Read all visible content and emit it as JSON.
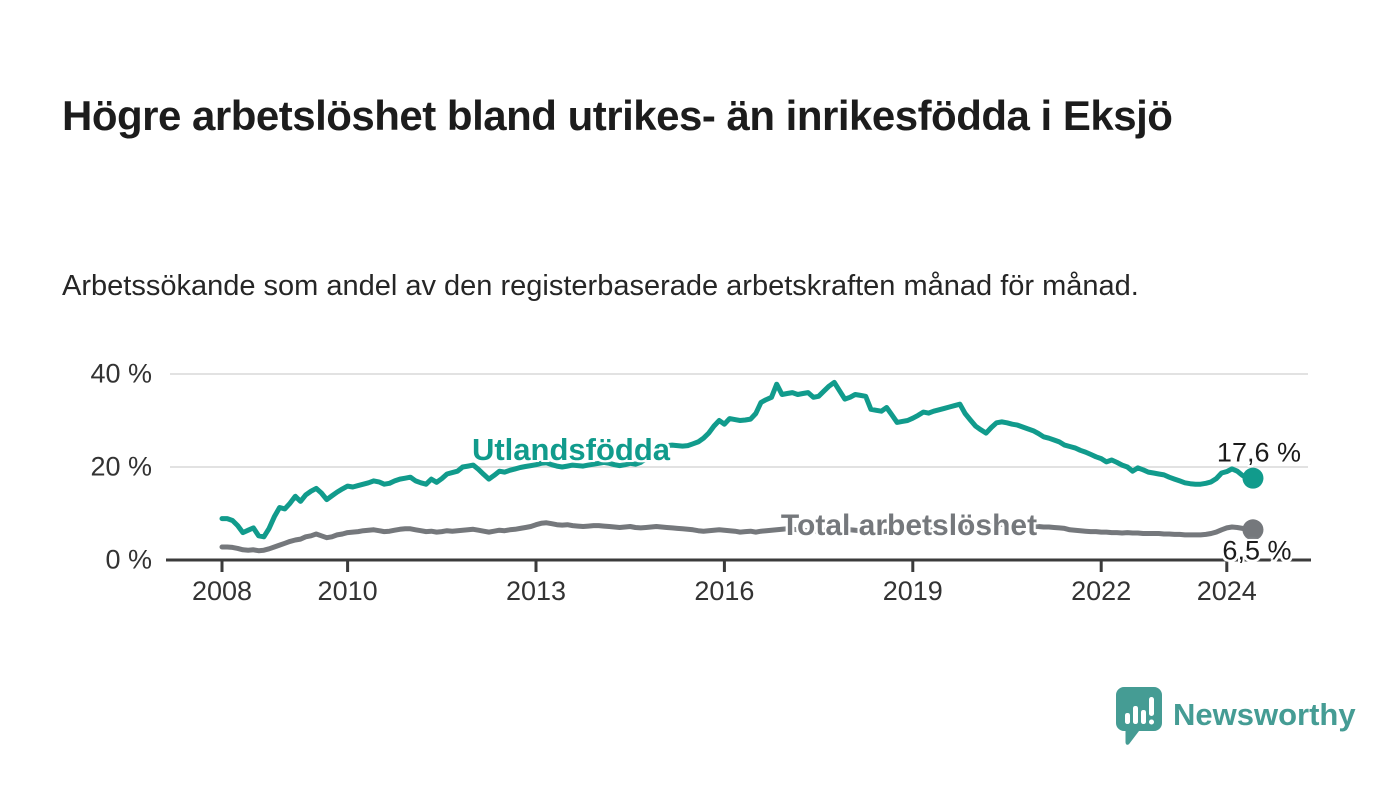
{
  "title": "Högre arbetslöshet bland utrikes- än inrikesfödda i Eksjö",
  "subtitle": "Arbetssökande som andel av den registerbaserade arbetskraften månad för månad.",
  "branding": {
    "logo_text": "Newsworthy",
    "logo_icon": "speech-bubble-bar-chart",
    "color": "#459c94"
  },
  "colors": {
    "foreign_born_line": "#119b8c",
    "total_line": "#75787c",
    "axis": "#3b3b3b",
    "grid": "#d8d8d8",
    "tick_text": "#333333"
  },
  "chart_data": {
    "type": "line",
    "title": "",
    "xlabel": "",
    "ylabel": "",
    "x_start_year": 2008,
    "x_months_per_step": 1,
    "x_end_label_year": 2024.42,
    "ylim": [
      0,
      44
    ],
    "grid": "horizontal",
    "y_ticks": [
      {
        "value": 0,
        "label": "0 %"
      },
      {
        "value": 20,
        "label": "20 %"
      },
      {
        "value": 40,
        "label": "40 %"
      }
    ],
    "x_ticks": [
      {
        "year": 2008,
        "label": "2008"
      },
      {
        "year": 2010,
        "label": "2010"
      },
      {
        "year": 2013,
        "label": "2013"
      },
      {
        "year": 2016,
        "label": "2016"
      },
      {
        "year": 2019,
        "label": "2019"
      },
      {
        "year": 2022,
        "label": "2022"
      },
      {
        "year": 2024,
        "label": "2024"
      }
    ],
    "series": [
      {
        "name": "Utlandsfödda",
        "color": "#119b8c",
        "end_label": "17,6 %",
        "end_value": 17.6,
        "values": [
          8.9,
          8.9,
          8.5,
          7.4,
          5.9,
          6.4,
          6.9,
          5.2,
          5.0,
          6.8,
          9.3,
          11.3,
          11.0,
          12.2,
          13.7,
          12.6,
          14.0,
          14.8,
          15.4,
          14.4,
          13.0,
          13.8,
          14.6,
          15.3,
          15.9,
          15.7,
          16.0,
          16.3,
          16.6,
          17.0,
          16.8,
          16.3,
          16.5,
          17.0,
          17.4,
          17.6,
          17.8,
          17.0,
          16.6,
          16.3,
          17.4,
          16.7,
          17.5,
          18.5,
          18.8,
          19.1,
          20.0,
          20.2,
          20.4,
          19.5,
          18.4,
          17.4,
          18.2,
          19.1,
          18.9,
          19.3,
          19.6,
          19.9,
          20.1,
          20.3,
          20.5,
          20.8,
          20.9,
          20.5,
          20.2,
          20.0,
          20.2,
          20.4,
          20.3,
          20.2,
          20.4,
          20.6,
          20.8,
          21.0,
          20.8,
          20.5,
          20.3,
          20.5,
          20.8,
          20.6,
          21.0,
          21.8,
          22.8,
          23.8,
          24.4,
          24.6,
          24.7,
          24.6,
          24.5,
          24.6,
          25.0,
          25.4,
          26.2,
          27.3,
          28.8,
          30.0,
          29.2,
          30.4,
          30.2,
          30.0,
          30.1,
          30.3,
          31.5,
          33.9,
          34.5,
          35.0,
          37.8,
          35.6,
          35.8,
          36.0,
          35.6,
          35.8,
          36.0,
          35.0,
          35.2,
          36.3,
          37.4,
          38.2,
          36.4,
          34.6,
          35.0,
          35.6,
          35.4,
          35.2,
          32.4,
          32.2,
          32.0,
          32.8,
          31.2,
          29.6,
          29.8,
          30.0,
          30.5,
          31.1,
          31.8,
          31.6,
          32.0,
          32.3,
          32.6,
          32.9,
          33.2,
          33.5,
          31.5,
          30.1,
          28.8,
          28.0,
          27.3,
          28.5,
          29.5,
          29.7,
          29.5,
          29.2,
          29.0,
          28.6,
          28.2,
          27.8,
          27.2,
          26.5,
          26.2,
          25.8,
          25.4,
          24.7,
          24.4,
          24.1,
          23.6,
          23.2,
          22.7,
          22.2,
          21.8,
          21.1,
          21.5,
          21.0,
          20.4,
          20.0,
          19.1,
          19.8,
          19.4,
          18.9,
          18.7,
          18.5,
          18.3,
          17.8,
          17.4,
          17.0,
          16.6,
          16.4,
          16.3,
          16.3,
          16.5,
          16.8,
          17.5,
          18.7,
          19.0,
          19.6,
          19.1,
          18.2,
          17.6,
          17.6
        ]
      },
      {
        "name": "Total arbetslöshet",
        "color": "#75787c",
        "end_label": "6,5 %",
        "end_value": 6.5,
        "values": [
          2.8,
          2.8,
          2.7,
          2.5,
          2.2,
          2.1,
          2.2,
          2.0,
          2.1,
          2.4,
          2.8,
          3.2,
          3.6,
          4.0,
          4.3,
          4.5,
          5.0,
          5.2,
          5.6,
          5.2,
          4.8,
          5.0,
          5.4,
          5.6,
          5.9,
          6.0,
          6.1,
          6.3,
          6.4,
          6.5,
          6.3,
          6.1,
          6.2,
          6.4,
          6.6,
          6.7,
          6.7,
          6.5,
          6.3,
          6.1,
          6.2,
          6.0,
          6.1,
          6.3,
          6.2,
          6.3,
          6.4,
          6.5,
          6.6,
          6.4,
          6.2,
          6.0,
          6.2,
          6.4,
          6.3,
          6.5,
          6.6,
          6.8,
          7.0,
          7.2,
          7.6,
          7.9,
          8.0,
          7.8,
          7.6,
          7.5,
          7.6,
          7.4,
          7.3,
          7.2,
          7.3,
          7.4,
          7.4,
          7.3,
          7.2,
          7.1,
          7.0,
          7.1,
          7.2,
          7.0,
          6.9,
          7.0,
          7.1,
          7.2,
          7.1,
          7.0,
          6.9,
          6.8,
          6.7,
          6.6,
          6.5,
          6.3,
          6.2,
          6.3,
          6.4,
          6.5,
          6.4,
          6.3,
          6.2,
          6.0,
          6.1,
          6.2,
          6.0,
          6.2,
          6.3,
          6.4,
          6.5,
          6.6,
          6.7,
          6.6,
          6.5,
          6.4,
          6.3,
          6.2,
          6.3,
          6.4,
          6.5,
          6.6,
          6.5,
          6.4,
          6.5,
          6.4,
          6.3,
          6.2,
          6.1,
          6.0,
          6.1,
          6.2,
          6.1,
          6.0,
          6.1,
          6.2,
          6.3,
          6.4,
          6.5,
          6.4,
          6.5,
          6.6,
          6.7,
          6.8,
          6.9,
          7.0,
          6.9,
          6.8,
          6.9,
          7.0,
          7.2,
          7.5,
          7.6,
          7.7,
          7.6,
          7.5,
          7.4,
          7.3,
          7.2,
          7.2,
          7.2,
          7.1,
          7.1,
          7.0,
          6.9,
          6.8,
          6.5,
          6.4,
          6.3,
          6.2,
          6.1,
          6.1,
          6.0,
          6.0,
          5.9,
          5.9,
          5.8,
          5.9,
          5.8,
          5.8,
          5.7,
          5.7,
          5.7,
          5.7,
          5.6,
          5.6,
          5.5,
          5.5,
          5.4,
          5.4,
          5.4,
          5.4,
          5.5,
          5.7,
          6.0,
          6.5,
          6.9,
          7.1,
          7.0,
          6.8,
          6.6,
          6.5
        ]
      }
    ],
    "legend_position": "inline-annotations"
  }
}
